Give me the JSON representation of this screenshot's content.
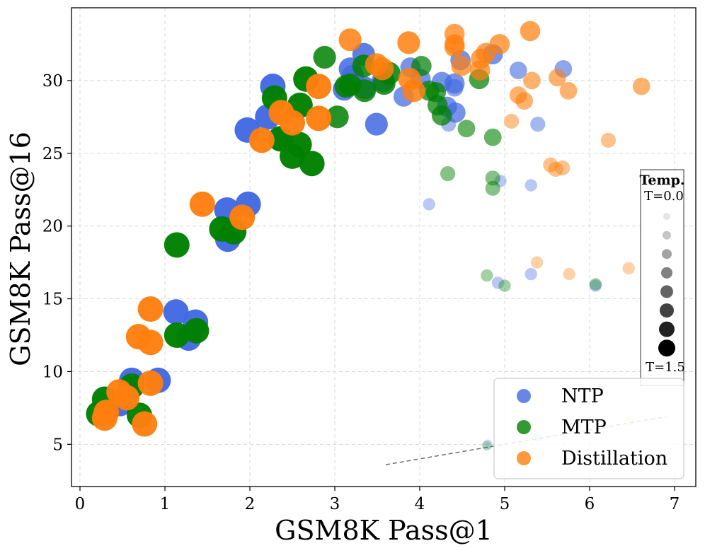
{
  "chart_data": {
    "type": "scatter",
    "xlabel": "GSM8K Pass@1",
    "ylabel": "GSM8K Pass@16",
    "xlim": [
      -0.1,
      7.25
    ],
    "ylim": [
      2.1,
      35.0
    ],
    "xticks": [
      0,
      1,
      2,
      3,
      4,
      5,
      6,
      7
    ],
    "yticks": [
      5,
      10,
      15,
      20,
      25,
      30
    ],
    "grid": true,
    "legend": {
      "position": "lower-right",
      "entries": [
        "NTP",
        "MTP",
        "Distillation"
      ]
    },
    "temperature_legend": {
      "title": "Temp.",
      "top_label": "T=0.0",
      "bottom_label": "T=1.5",
      "steps": 8
    },
    "colors": {
      "NTP": "#4169E1",
      "MTP": "#008000",
      "Distillation": "#FF7F0E",
      "trend": "#666666"
    },
    "trend_line": {
      "x": [
        3.6,
        6.9
      ],
      "y": [
        3.6,
        6.9
      ]
    },
    "series": [
      {
        "name": "NTP",
        "points": [
          [
            0.47,
            7.8,
            7
          ],
          [
            0.61,
            9.4,
            7
          ],
          [
            0.92,
            9.4,
            7
          ],
          [
            1.13,
            14.1,
            7
          ],
          [
            1.28,
            12.3,
            7
          ],
          [
            1.36,
            13.4,
            7
          ],
          [
            1.73,
            21.1,
            7
          ],
          [
            1.74,
            19.1,
            7
          ],
          [
            1.98,
            21.5,
            7
          ],
          [
            1.97,
            26.6,
            7
          ],
          [
            2.21,
            27.5,
            7
          ],
          [
            2.27,
            29.6,
            7
          ],
          [
            2.36,
            26.0,
            7
          ],
          [
            3.11,
            29.4,
            6
          ],
          [
            3.18,
            30.8,
            6
          ],
          [
            3.21,
            30.3,
            6
          ],
          [
            3.34,
            31.8,
            6
          ],
          [
            3.35,
            29.5,
            6
          ],
          [
            3.49,
            27.0,
            6
          ],
          [
            3.57,
            30.0,
            6
          ],
          [
            3.81,
            28.9,
            5
          ],
          [
            3.89,
            30.9,
            5
          ],
          [
            4.01,
            30.1,
            5
          ],
          [
            4.26,
            29.9,
            5
          ],
          [
            4.32,
            28.2,
            5
          ],
          [
            4.41,
            29.8,
            5
          ],
          [
            4.42,
            27.8,
            5
          ],
          [
            4.48,
            31.4,
            5
          ],
          [
            4.86,
            31.8,
            5
          ],
          [
            5.16,
            30.7,
            4
          ],
          [
            5.69,
            30.8,
            4
          ],
          [
            4.41,
            29.5,
            4
          ],
          [
            4.34,
            27.0,
            3
          ],
          [
            5.39,
            27.0,
            3
          ],
          [
            4.11,
            21.5,
            2
          ],
          [
            4.95,
            23.1,
            2
          ],
          [
            5.31,
            22.8,
            2
          ],
          [
            4.92,
            16.1,
            2
          ],
          [
            5.31,
            16.7,
            2
          ],
          [
            6.07,
            15.9,
            2
          ],
          [
            5.38,
            5.5,
            1
          ],
          [
            4.8,
            5.0,
            1
          ]
        ]
      },
      {
        "name": "MTP",
        "points": [
          [
            0.22,
            7.1,
            7
          ],
          [
            0.29,
            8.1,
            7
          ],
          [
            0.61,
            9.0,
            7
          ],
          [
            0.7,
            7.0,
            7
          ],
          [
            1.14,
            18.7,
            7
          ],
          [
            1.14,
            12.5,
            7
          ],
          [
            1.37,
            12.8,
            7
          ],
          [
            1.67,
            19.8,
            7
          ],
          [
            1.81,
            19.6,
            7
          ],
          [
            2.29,
            28.8,
            7
          ],
          [
            2.36,
            26.0,
            7
          ],
          [
            2.5,
            24.8,
            7
          ],
          [
            2.58,
            25.6,
            7
          ],
          [
            2.59,
            28.3,
            7
          ],
          [
            2.66,
            30.1,
            7
          ],
          [
            2.73,
            24.3,
            7
          ],
          [
            2.88,
            31.6,
            6
          ],
          [
            3.03,
            27.5,
            6
          ],
          [
            3.13,
            29.6,
            6
          ],
          [
            3.18,
            29.7,
            6
          ],
          [
            3.34,
            31.0,
            6
          ],
          [
            3.35,
            29.3,
            6
          ],
          [
            3.58,
            29.8,
            6
          ],
          [
            3.64,
            30.5,
            6
          ],
          [
            4.02,
            31.0,
            5
          ],
          [
            4.11,
            29.3,
            5
          ],
          [
            4.19,
            29.2,
            5
          ],
          [
            4.21,
            28.3,
            5
          ],
          [
            4.26,
            27.6,
            5
          ],
          [
            4.7,
            30.1,
            5
          ],
          [
            4.55,
            26.7,
            4
          ],
          [
            4.86,
            26.1,
            4
          ],
          [
            4.33,
            23.6,
            3
          ],
          [
            4.86,
            23.3,
            3
          ],
          [
            4.86,
            22.6,
            3
          ],
          [
            4.79,
            16.6,
            2
          ],
          [
            5.0,
            15.9,
            2
          ],
          [
            6.07,
            16.0,
            2
          ],
          [
            4.79,
            4.9,
            1
          ]
        ]
      },
      {
        "name": "Distillation",
        "points": [
          [
            0.29,
            6.8,
            7
          ],
          [
            0.31,
            7.2,
            7
          ],
          [
            0.46,
            8.6,
            7
          ],
          [
            0.55,
            8.2,
            7
          ],
          [
            0.69,
            12.4,
            7
          ],
          [
            0.76,
            6.4,
            7
          ],
          [
            0.83,
            12.0,
            7
          ],
          [
            0.83,
            9.2,
            7
          ],
          [
            0.83,
            14.3,
            7
          ],
          [
            1.44,
            21.5,
            7
          ],
          [
            1.91,
            20.6,
            7
          ],
          [
            2.14,
            25.9,
            7
          ],
          [
            2.37,
            27.8,
            7
          ],
          [
            2.5,
            27.1,
            7
          ],
          [
            2.81,
            29.6,
            7
          ],
          [
            2.81,
            27.4,
            7
          ],
          [
            3.18,
            32.8,
            6
          ],
          [
            3.49,
            31.1,
            6
          ],
          [
            3.56,
            30.8,
            6
          ],
          [
            3.87,
            32.6,
            6
          ],
          [
            3.88,
            30.1,
            6
          ],
          [
            3.93,
            29.3,
            6
          ],
          [
            4.41,
            33.2,
            5
          ],
          [
            4.41,
            32.5,
            5
          ],
          [
            4.41,
            32.3,
            5
          ],
          [
            4.49,
            31.0,
            5
          ],
          [
            4.71,
            30.7,
            5
          ],
          [
            4.72,
            31.5,
            5
          ],
          [
            4.78,
            31.9,
            5
          ],
          [
            4.94,
            32.5,
            5
          ],
          [
            5.3,
            33.4,
            5
          ],
          [
            5.16,
            29.0,
            4
          ],
          [
            5.23,
            28.6,
            4
          ],
          [
            5.32,
            30.0,
            4
          ],
          [
            5.62,
            30.2,
            4
          ],
          [
            5.75,
            29.3,
            4
          ],
          [
            6.61,
            29.6,
            4
          ],
          [
            5.08,
            27.2,
            3
          ],
          [
            6.22,
            25.9,
            3
          ],
          [
            5.54,
            24.2,
            3
          ],
          [
            5.6,
            23.9,
            3
          ],
          [
            5.68,
            24.0,
            3
          ],
          [
            5.38,
            17.5,
            2
          ],
          [
            5.76,
            16.7,
            2
          ],
          [
            6.46,
            17.1,
            2
          ],
          [
            6.46,
            6.6,
            1
          ]
        ]
      }
    ]
  }
}
